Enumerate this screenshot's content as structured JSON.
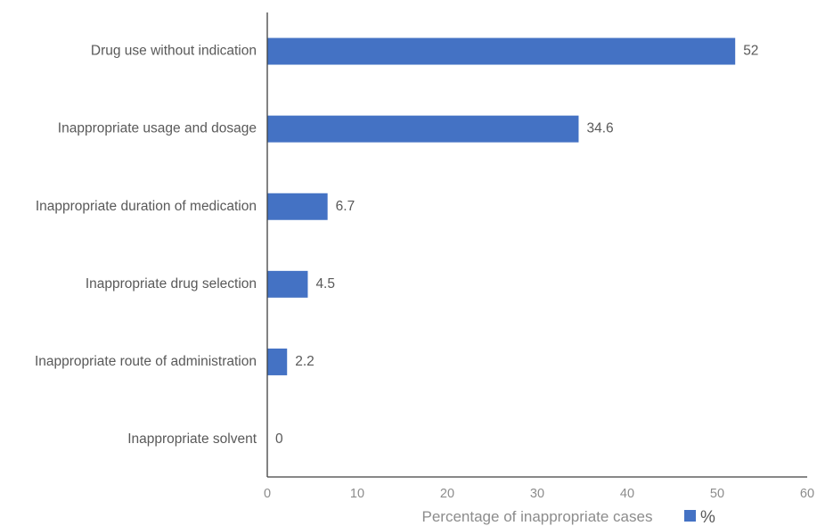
{
  "chart_data": {
    "type": "bar",
    "orientation": "horizontal",
    "categories": [
      "Drug use without indication",
      "Inappropriate usage and dosage",
      "Inappropriate duration of medication",
      "Inappropriate drug selection",
      "Inappropriate route of administration",
      "Inappropriate solvent"
    ],
    "series": [
      {
        "name": "%",
        "values": [
          52,
          34.6,
          6.7,
          4.5,
          2.2,
          0
        ],
        "color": "#4472c4"
      }
    ],
    "data_labels": [
      "52",
      "34.6",
      "6.7",
      "4.5",
      "2.2",
      "0"
    ],
    "title": "",
    "xlabel": "Percentage of inappropriate cases",
    "ylabel": "",
    "xlim": [
      0,
      60
    ],
    "x_ticks": [
      0,
      10,
      20,
      30,
      40,
      50,
      60
    ],
    "x_tick_labels": [
      "0",
      "10",
      "20",
      "30",
      "40",
      "50",
      "60"
    ],
    "grid": false,
    "legend": {
      "position": "bottom-right",
      "entries": [
        "%"
      ]
    }
  }
}
